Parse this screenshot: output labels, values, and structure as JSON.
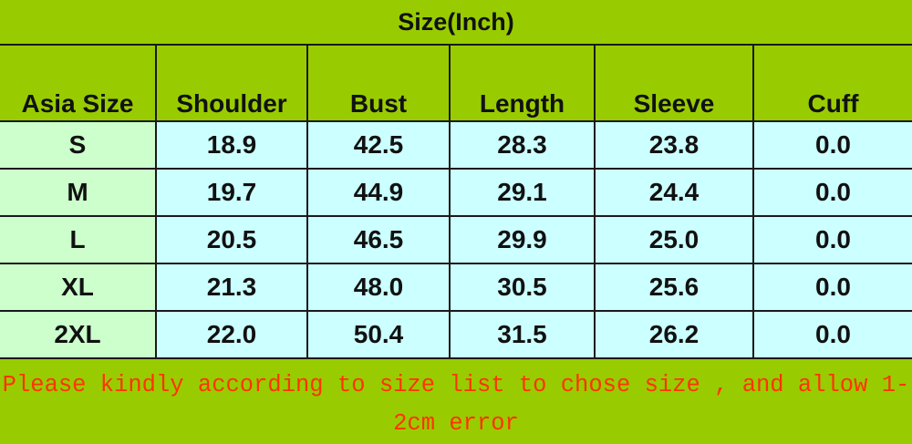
{
  "title": "Size(Inch)",
  "colors": {
    "header_bg": "#99cc00",
    "size_col_bg": "#ccffcc",
    "cell_bg": "#ccffff",
    "note_text": "#ff3300"
  },
  "columns": [
    "Asia Size",
    "Shoulder",
    "Bust",
    "Length",
    "Sleeve",
    "Cuff"
  ],
  "rows": [
    [
      "S",
      "18.9",
      "42.5",
      "28.3",
      "23.8",
      "0.0"
    ],
    [
      "M",
      "19.7",
      "44.9",
      "29.1",
      "24.4",
      "0.0"
    ],
    [
      "L",
      "20.5",
      "46.5",
      "29.9",
      "25.0",
      "0.0"
    ],
    [
      "XL",
      "21.3",
      "48.0",
      "30.5",
      "25.6",
      "0.0"
    ],
    [
      "2XL",
      "22.0",
      "50.4",
      "31.5",
      "26.2",
      "0.0"
    ]
  ],
  "note": "Please kindly according to size list to chose size , and allow 1-2cm error"
}
